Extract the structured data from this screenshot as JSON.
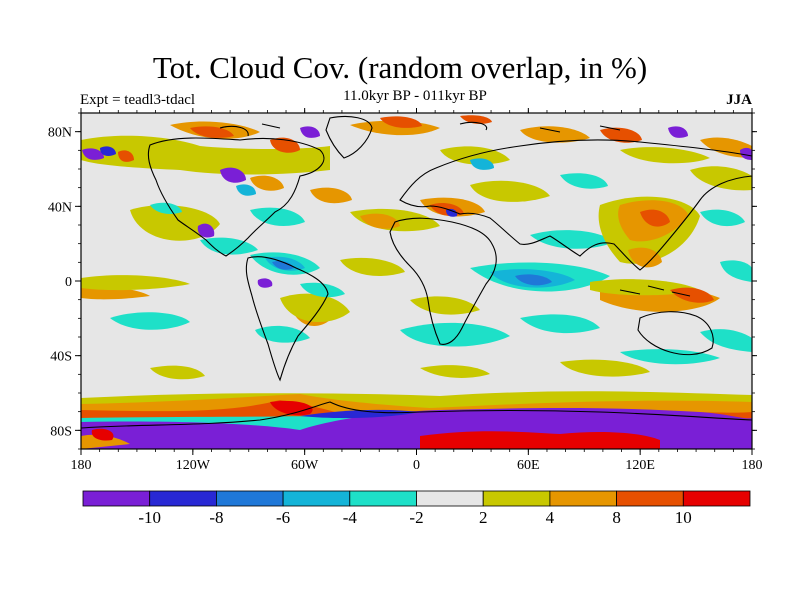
{
  "title": "Tot. Cloud Cov. (random overlap, in %)",
  "subtitle": "11.0kyr BP - 011kyr BP",
  "expt": "Expt = teadl3-tdacl",
  "season": "JJA",
  "chart_data": {
    "type": "heatmap",
    "projection": "cylindrical-equidistant",
    "lon_range": [
      -180,
      180
    ],
    "lat_range": [
      -90,
      90
    ],
    "x_ticks": [
      "180",
      "120W",
      "60W",
      "0",
      "60E",
      "120E",
      "180"
    ],
    "y_ticks": [
      "80N",
      "40N",
      "0",
      "40S",
      "80S"
    ],
    "colorbar": {
      "levels": [
        -10,
        -8,
        -6,
        -4,
        -2,
        2,
        4,
        8,
        10
      ],
      "labels": [
        "-10",
        "-8",
        "-6",
        "-4",
        "-2",
        "2",
        "4",
        "8",
        "10"
      ],
      "colors": [
        "#7a1fd6",
        "#2828d4",
        "#1f78d8",
        "#14b4d8",
        "#1ee0c8",
        "#e6e6e6",
        "#c8c800",
        "#e69600",
        "#e65000",
        "#e60000"
      ]
    }
  }
}
